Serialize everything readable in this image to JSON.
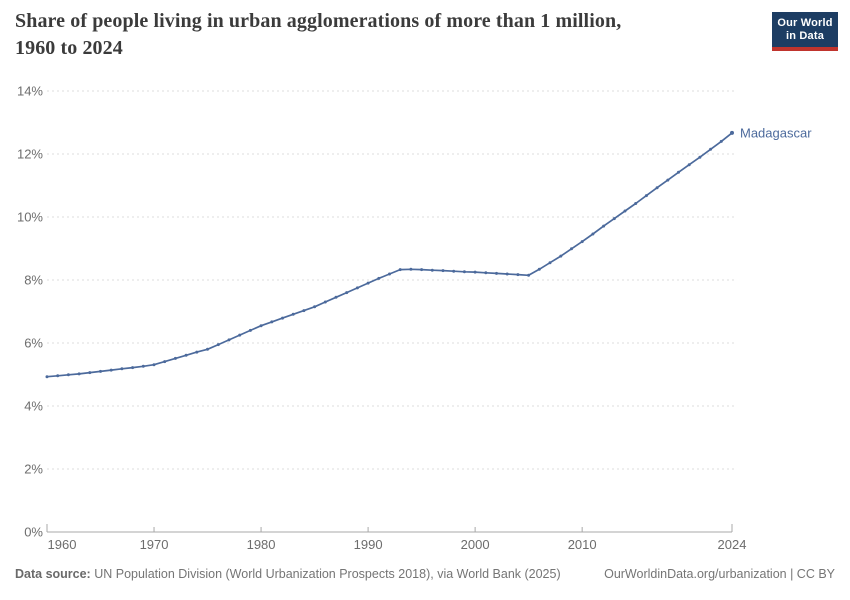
{
  "header": {
    "title_line1": "Share of people living in urban agglomerations of more than 1 million,",
    "title_line2": "1960 to 2024",
    "logo_line1": "Our World",
    "logo_line2": "in Data"
  },
  "footer": {
    "data_source_label": "Data source:",
    "data_source_text": " UN Population Division (World Urbanization Prospects 2018), via World Bank (2025)",
    "link_text": "OurWorldinData.org/urbanization | CC BY"
  },
  "colors": {
    "series_blue": "#4c6a9c",
    "grid_gray": "#dcdcdc",
    "axis_gray": "#a8a8a8",
    "tick_label_gray": "#6d6d6d",
    "logo_navy": "#1d3d63",
    "logo_red": "#c0342d"
  },
  "chart_data": {
    "type": "line",
    "title": "Share of people living in urban agglomerations of more than 1 million, 1960 to 2024",
    "xlabel": "",
    "ylabel": "",
    "xlim": [
      1960,
      2024
    ],
    "ylim": [
      0,
      14
    ],
    "yticks": [
      0,
      2,
      4,
      6,
      8,
      10,
      12,
      14
    ],
    "ytick_suffix": "%",
    "xticks": [
      1960,
      1970,
      1980,
      1990,
      2000,
      2010,
      2024
    ],
    "grid": "horizontal-dashed",
    "legend_position": "end-of-line-label",
    "series": [
      {
        "name": "Madagascar",
        "color": "#4c6a9c",
        "x": [
          1960,
          1961,
          1962,
          1963,
          1964,
          1965,
          1966,
          1967,
          1968,
          1969,
          1970,
          1971,
          1972,
          1973,
          1974,
          1975,
          1976,
          1977,
          1978,
          1979,
          1980,
          1981,
          1982,
          1983,
          1984,
          1985,
          1986,
          1987,
          1988,
          1989,
          1990,
          1991,
          1992,
          1993,
          1994,
          1995,
          1996,
          1997,
          1998,
          1999,
          2000,
          2001,
          2002,
          2003,
          2004,
          2005,
          2006,
          2007,
          2008,
          2009,
          2010,
          2011,
          2012,
          2013,
          2014,
          2015,
          2016,
          2017,
          2018,
          2019,
          2020,
          2021,
          2022,
          2023,
          2024
        ],
        "values": [
          4.93,
          4.96,
          4.99,
          5.02,
          5.06,
          5.1,
          5.14,
          5.18,
          5.22,
          5.26,
          5.31,
          5.41,
          5.51,
          5.61,
          5.71,
          5.8,
          5.95,
          6.1,
          6.25,
          6.4,
          6.55,
          6.67,
          6.79,
          6.91,
          7.03,
          7.15,
          7.3,
          7.45,
          7.6,
          7.75,
          7.9,
          8.05,
          8.19,
          8.33,
          8.34,
          8.33,
          8.31,
          8.3,
          8.28,
          8.26,
          8.25,
          8.23,
          8.21,
          8.19,
          8.17,
          8.15,
          8.34,
          8.55,
          8.76,
          8.99,
          9.22,
          9.46,
          9.71,
          9.95,
          10.19,
          10.43,
          10.68,
          10.93,
          11.17,
          11.42,
          11.66,
          11.9,
          12.15,
          12.4,
          12.67
        ]
      }
    ]
  }
}
